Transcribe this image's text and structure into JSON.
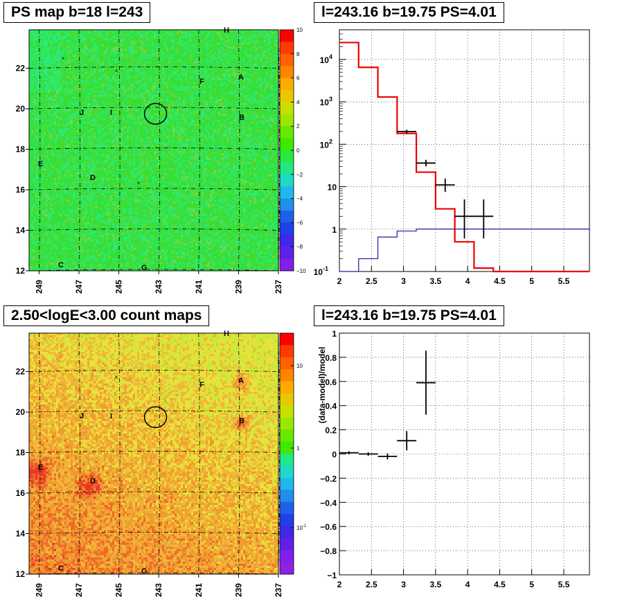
{
  "panels": [
    {
      "title": "PS map b=18 l=243"
    },
    {
      "title": "l=243.16 b=19.75 PS=4.01"
    },
    {
      "title": "2.50<logE<3.00 count maps"
    },
    {
      "title": "l=243.16 b=19.75 PS=4.01"
    }
  ],
  "chart_data": [
    {
      "type": "heatmap",
      "title": "PS map b=18 l=243",
      "x_ticks": [
        "249",
        "247",
        "245",
        "243",
        "241",
        "239",
        "237"
      ],
      "y_ticks": [
        "12",
        "14",
        "16",
        "18",
        "20",
        "22"
      ],
      "xlim": [
        249.5,
        237.0
      ],
      "ylim": [
        12,
        23.9
      ],
      "colorbar": {
        "range": [
          -10,
          10
        ],
        "ticks": [
          "10",
          "8",
          "6",
          "4",
          "2",
          "0",
          "−2",
          "−4",
          "−6",
          "−8",
          "−10"
        ]
      },
      "source_labels": [
        "H",
        "A",
        "F",
        "B",
        "J",
        "I",
        "E",
        "D",
        "C",
        "G"
      ],
      "circle_center": {
        "l": 243.16,
        "b": 19.75
      },
      "markers": [
        "×",
        "×",
        "×"
      ]
    },
    {
      "type": "line",
      "title": "l=243.16 b=19.75 PS=4.01",
      "x_ticks": [
        "2",
        "2.5",
        "3",
        "3.5",
        "4",
        "4.5",
        "5",
        "5.5"
      ],
      "y_ticks": [
        "10^-1",
        "1",
        "10",
        "10^2",
        "10^3",
        "10^4"
      ],
      "xlim": [
        2.0,
        5.9
      ],
      "ylim": [
        0.1,
        50000
      ],
      "yscale": "log",
      "grid": true,
      "model_red": {
        "edges": [
          2.0,
          2.3,
          2.6,
          2.9,
          3.2,
          3.5,
          3.8,
          4.1,
          4.4,
          4.7,
          5.0,
          5.3,
          5.6,
          5.9
        ],
        "values": [
          25000,
          6500,
          1300,
          180,
          22,
          3,
          0.5,
          0.12,
          0.1,
          0.1,
          0.1,
          0.1,
          0.1
        ]
      },
      "model_blue": {
        "edges": [
          2.0,
          2.3,
          2.6,
          2.9,
          3.2,
          3.5,
          3.8,
          4.1,
          4.4,
          4.7,
          5.0,
          5.3,
          5.6,
          5.9
        ],
        "values": [
          0.1,
          0.2,
          0.65,
          0.9,
          1.0,
          1.0,
          1.0,
          1.0,
          1.0,
          1.0,
          1.0,
          1.0,
          1.0
        ]
      },
      "data_points": [
        {
          "x": 3.05,
          "y": 200,
          "xerr": 0.15,
          "ylo": 180,
          "yhi": 220
        },
        {
          "x": 3.35,
          "y": 36,
          "xerr": 0.15,
          "ylo": 30,
          "yhi": 43
        },
        {
          "x": 3.65,
          "y": 11,
          "xerr": 0.15,
          "ylo": 7.5,
          "yhi": 15.5
        },
        {
          "x": 3.95,
          "y": 2,
          "xerr": 0.15,
          "ylo": 0.6,
          "yhi": 5
        },
        {
          "x": 4.25,
          "y": 2,
          "xerr": 0.15,
          "ylo": 0.6,
          "yhi": 5
        }
      ]
    },
    {
      "type": "heatmap",
      "title": "2.50<logE<3.00 count maps",
      "x_ticks": [
        "249",
        "247",
        "245",
        "243",
        "241",
        "239",
        "237"
      ],
      "y_ticks": [
        "12",
        "14",
        "16",
        "18",
        "20",
        "22"
      ],
      "xlim": [
        249.5,
        237.0
      ],
      "ylim": [
        12,
        23.9
      ],
      "colorbar": {
        "scale": "log",
        "ticks": [
          "10",
          "1",
          "10^-1"
        ]
      },
      "source_labels": [
        "H",
        "A",
        "F",
        "B",
        "J",
        "I",
        "E",
        "D",
        "C",
        "G"
      ],
      "circle_center": {
        "l": 243.16,
        "b": 19.75
      }
    },
    {
      "type": "scatter",
      "title": "l=243.16 b=19.75 PS=4.01",
      "ylabel": "(data-model)/model",
      "x_ticks": [
        "2",
        "2.5",
        "3",
        "3.5",
        "4",
        "4.5",
        "5",
        "5.5"
      ],
      "y_ticks": [
        "1",
        "0.8",
        "0.6",
        "0.4",
        "0.2",
        "0",
        "−0.2",
        "−0.4",
        "−0.6",
        "−0.8",
        "−1"
      ],
      "xlim": [
        2.0,
        5.9
      ],
      "ylim": [
        -1,
        1
      ],
      "grid": true,
      "points": [
        {
          "x": 2.15,
          "y": 0.01,
          "xerr": 0.15,
          "yerr": 0.012
        },
        {
          "x": 2.45,
          "y": 0.0,
          "xerr": 0.15,
          "yerr": 0.015
        },
        {
          "x": 2.75,
          "y": -0.02,
          "xerr": 0.15,
          "yerr": 0.025
        },
        {
          "x": 3.05,
          "y": 0.11,
          "xerr": 0.15,
          "yerr": 0.08
        },
        {
          "x": 3.35,
          "y": 0.59,
          "xerr": 0.15,
          "yerr": 0.265
        }
      ]
    }
  ]
}
